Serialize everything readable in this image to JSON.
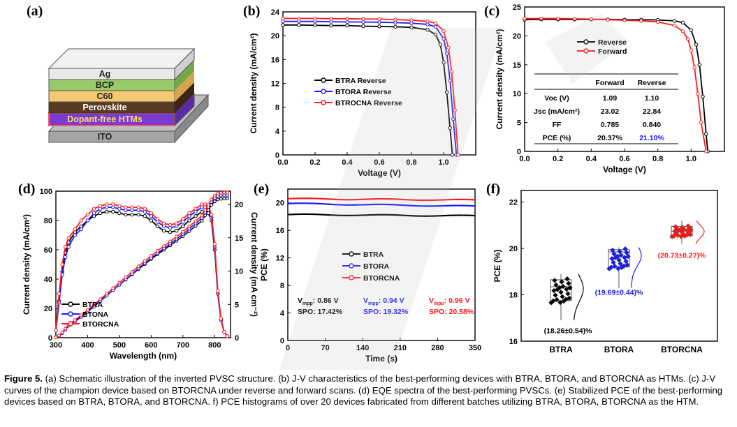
{
  "panels": {
    "a": {
      "label": "(a)",
      "layers": [
        "Ag",
        "BCP",
        "C60",
        "Perovskite",
        "Dopant-free HTMs",
        "ITO"
      ]
    },
    "b": {
      "label": "(b)"
    },
    "c": {
      "label": "(c)",
      "table": {
        "headers": [
          "",
          "Forward",
          "Reverse"
        ],
        "rows": [
          {
            "label": "Voc (V)",
            "forward": "1.09",
            "reverse": "1.10"
          },
          {
            "label": "Jsc (mA/cm²)",
            "forward": "23.02",
            "reverse": "22.84"
          },
          {
            "label": "FF",
            "forward": "0.785",
            "reverse": "0.840"
          },
          {
            "label": "PCE (%)",
            "forward": "20.37%",
            "reverse": "21.10%"
          }
        ]
      }
    },
    "d": {
      "label": "(d)"
    },
    "e": {
      "label": "(e)",
      "annotations": [
        {
          "vmpp": "0.86 V",
          "spo": "SPO: 17.42%",
          "color": "#000000"
        },
        {
          "vmpp": "0.94 V",
          "spo": "SPO: 19.32%",
          "color": "#1a1aff"
        },
        {
          "vmpp": "0.96 V",
          "spo": "SPO: 20.58%",
          "color": "#ff1a1a"
        }
      ]
    },
    "f": {
      "label": "(f)"
    }
  },
  "colors": {
    "btra": "#000000",
    "btora": "#1a1aff",
    "btorcna": "#ff1a1a"
  },
  "chart_data": [
    {
      "id": "b",
      "type": "line",
      "xlabel": "Voltage (V)",
      "ylabel": "Current density (mA/cm²)",
      "xlim": [
        0,
        1.2
      ],
      "ylim": [
        0,
        24
      ],
      "xticks": [
        "0.0",
        "0.2",
        "0.4",
        "0.6",
        "0.8",
        "1.0"
      ],
      "yticks": [
        "0",
        "4",
        "8",
        "12",
        "16",
        "20",
        "24"
      ],
      "legend_position": "middle-left",
      "series": [
        {
          "name": "BTRA Reverse",
          "color": "#000000",
          "x": [
            0,
            0.1,
            0.2,
            0.3,
            0.4,
            0.5,
            0.6,
            0.7,
            0.8,
            0.9,
            0.95,
            0.98,
            1.0,
            1.02,
            1.04,
            1.055
          ],
          "y": [
            21.8,
            21.8,
            21.75,
            21.7,
            21.7,
            21.6,
            21.55,
            21.5,
            21.4,
            21.0,
            20.2,
            18.5,
            15.5,
            10.5,
            4.5,
            0
          ]
        },
        {
          "name": "BTORA Reverse",
          "color": "#1a1aff",
          "x": [
            0,
            0.1,
            0.2,
            0.3,
            0.4,
            0.5,
            0.6,
            0.7,
            0.8,
            0.9,
            0.95,
            1.0,
            1.02,
            1.04,
            1.06,
            1.08
          ],
          "y": [
            22.4,
            22.4,
            22.4,
            22.35,
            22.3,
            22.3,
            22.25,
            22.2,
            22.1,
            21.9,
            21.5,
            19.5,
            17.0,
            12.5,
            6.0,
            0
          ]
        },
        {
          "name": "BTROCNA Reverse",
          "color": "#ff1a1a",
          "x": [
            0,
            0.1,
            0.2,
            0.3,
            0.4,
            0.5,
            0.6,
            0.7,
            0.8,
            0.9,
            0.95,
            1.0,
            1.03,
            1.05,
            1.07,
            1.09
          ],
          "y": [
            22.9,
            22.9,
            22.9,
            22.85,
            22.85,
            22.8,
            22.8,
            22.7,
            22.6,
            22.4,
            22.1,
            20.8,
            18.0,
            14.0,
            7.5,
            0
          ]
        }
      ]
    },
    {
      "id": "c",
      "type": "line",
      "xlabel": "Voltage (V)",
      "ylabel": "Current density (mA/cm²)",
      "xlim": [
        0,
        1.2
      ],
      "ylim": [
        0,
        25
      ],
      "xticks": [
        "0.0",
        "0.2",
        "0.4",
        "0.6",
        "0.8",
        "1.0"
      ],
      "yticks": [
        "0",
        "5",
        "10",
        "15",
        "20",
        "25"
      ],
      "legend_position": "top-right",
      "series": [
        {
          "name": "Reverse",
          "color": "#000000",
          "x": [
            0,
            0.1,
            0.2,
            0.3,
            0.4,
            0.5,
            0.6,
            0.7,
            0.8,
            0.9,
            0.95,
            1.0,
            1.03,
            1.05,
            1.07,
            1.09,
            1.1
          ],
          "y": [
            22.8,
            22.85,
            22.85,
            22.85,
            22.85,
            22.85,
            22.8,
            22.8,
            22.75,
            22.6,
            22.3,
            21.0,
            18.5,
            15.0,
            9.5,
            3.0,
            0
          ]
        },
        {
          "name": "Forward",
          "color": "#ff1a1a",
          "x": [
            0,
            0.1,
            0.2,
            0.3,
            0.4,
            0.5,
            0.6,
            0.7,
            0.8,
            0.9,
            0.95,
            0.98,
            1.0,
            1.02,
            1.04,
            1.06,
            1.09
          ],
          "y": [
            23.0,
            23.0,
            23.0,
            22.95,
            22.9,
            22.8,
            22.7,
            22.6,
            22.4,
            21.8,
            20.8,
            19.5,
            17.5,
            14.5,
            10.0,
            5.0,
            0
          ]
        }
      ]
    },
    {
      "id": "d",
      "type": "line",
      "xlabel": "Wavelength (nm)",
      "ylabel": "Current density (mA/cm²)",
      "ylabel_right": "Current density (mA cm⁻²)",
      "xlim": [
        300,
        850
      ],
      "ylim": [
        0,
        100
      ],
      "ylim_right": [
        0,
        22
      ],
      "xticks": [
        "300",
        "400",
        "500",
        "600",
        "700",
        "800"
      ],
      "yticks": [
        "0",
        "20",
        "40",
        "60",
        "80",
        "100"
      ],
      "yticks_right": [
        "0",
        "5",
        "10",
        "15",
        "20"
      ],
      "legend_position": "bottom-left",
      "series": [
        {
          "name": "BTRA",
          "color": "#000000",
          "x": [
            300,
            310,
            320,
            330,
            340,
            360,
            380,
            400,
            420,
            440,
            460,
            480,
            500,
            520,
            540,
            560,
            580,
            600,
            620,
            640,
            660,
            680,
            700,
            720,
            740,
            760,
            770,
            780,
            790,
            800,
            810,
            820,
            830,
            840
          ],
          "y": [
            5,
            25,
            45,
            58,
            65,
            72,
            76,
            80,
            83,
            85,
            86,
            86,
            85,
            84,
            84,
            84,
            83,
            80,
            76,
            73,
            72,
            73,
            76,
            80,
            83,
            86,
            86,
            85,
            80,
            60,
            30,
            12,
            4,
            1
          ]
        },
        {
          "name": "BTONA",
          "color": "#1a1aff",
          "x": [
            300,
            310,
            320,
            330,
            340,
            360,
            380,
            400,
            420,
            440,
            460,
            480,
            500,
            520,
            540,
            560,
            580,
            600,
            620,
            640,
            660,
            680,
            700,
            720,
            740,
            760,
            770,
            780,
            790,
            800,
            810,
            820,
            830,
            840
          ],
          "y": [
            5,
            24,
            43,
            55,
            62,
            70,
            74,
            80,
            85,
            88,
            89,
            89,
            88,
            87,
            87,
            87,
            86,
            83,
            79,
            76,
            75,
            76,
            79,
            83,
            86,
            89,
            89,
            88,
            82,
            62,
            30,
            12,
            4,
            1
          ]
        },
        {
          "name": "BTORCNA",
          "color": "#ff1a1a",
          "x": [
            300,
            310,
            320,
            330,
            340,
            360,
            380,
            400,
            420,
            440,
            460,
            480,
            500,
            520,
            540,
            560,
            580,
            600,
            620,
            640,
            660,
            680,
            700,
            720,
            740,
            760,
            770,
            780,
            790,
            800,
            810,
            820,
            830,
            840
          ],
          "y": [
            5,
            30,
            50,
            62,
            68,
            74,
            80,
            84,
            88,
            90,
            91,
            91,
            90,
            89,
            89,
            89,
            88,
            85,
            81,
            78,
            77,
            78,
            81,
            85,
            88,
            91,
            91,
            90,
            84,
            64,
            32,
            13,
            4,
            1
          ]
        }
      ]
    },
    {
      "id": "e",
      "type": "line",
      "xlabel": "Time (s)",
      "ylabel": "PCE (%)",
      "xlim": [
        0,
        350
      ],
      "ylim": [
        0,
        22
      ],
      "xticks": [
        "0",
        "70",
        "140",
        "210",
        "280",
        "350"
      ],
      "yticks": [
        "0",
        "4",
        "8",
        "12",
        "16",
        "20"
      ],
      "legend_position": "middle-center",
      "series": [
        {
          "name": "BTRA",
          "color": "#000000",
          "x": [
            0,
            350
          ],
          "y": [
            18.3,
            18.1
          ]
        },
        {
          "name": "BTORA",
          "color": "#1a1aff",
          "x": [
            0,
            350
          ],
          "y": [
            19.9,
            19.5
          ]
        },
        {
          "name": "BTORCNA",
          "color": "#ff1a1a",
          "x": [
            0,
            350
          ],
          "y": [
            20.6,
            20.4
          ]
        }
      ]
    },
    {
      "id": "f",
      "type": "box",
      "ylabel": "PCE (%)",
      "ylim": [
        16,
        22.5
      ],
      "yticks": [
        "16",
        "18",
        "20",
        "22"
      ],
      "categories": [
        "BTRA",
        "BTORA",
        "BTORCNA"
      ],
      "series": [
        {
          "name": "BTRA",
          "color": "#000000",
          "mean": 18.26,
          "sd": 0.54,
          "label": "(18.26±0.54)%",
          "q1": 17.75,
          "median": 18.35,
          "q3": 18.65,
          "min": 16.9,
          "max": 18.9
        },
        {
          "name": "BTORA",
          "color": "#1a1aff",
          "mean": 19.69,
          "sd": 0.44,
          "label": "(19.69±0.44)%",
          "q1": 19.2,
          "median": 19.85,
          "q3": 19.95,
          "min": 18.3,
          "max": 20.05
        },
        {
          "name": "BTORCNA",
          "color": "#ff1a1a",
          "mean": 20.73,
          "sd": 0.27,
          "label": "(20.73±0.27)%",
          "q1": 20.55,
          "median": 20.75,
          "q3": 20.95,
          "min": 20.2,
          "max": 21.2
        }
      ]
    }
  ],
  "caption": {
    "figure_label": "Figure 5.",
    "text": " (a) Schematic illustration of the inverted PVSC structure. (b) J-V characteristics of the best-performing devices with BTRA, BTORA, and BTORCNA as HTMs. (c) J-V curves of the champion device based on BTORCNA under reverse and forward scans. (d) EQE spectra of the best-performing PVSCs. (e) Stabilized PCE of the best-performing devices based on BTRA, BTORA, and BTORCNA. f) PCE histograms of over 20 devices fabricated from different batches utilizing BTRA, BTORA, BTORCNA as the HTM."
  }
}
